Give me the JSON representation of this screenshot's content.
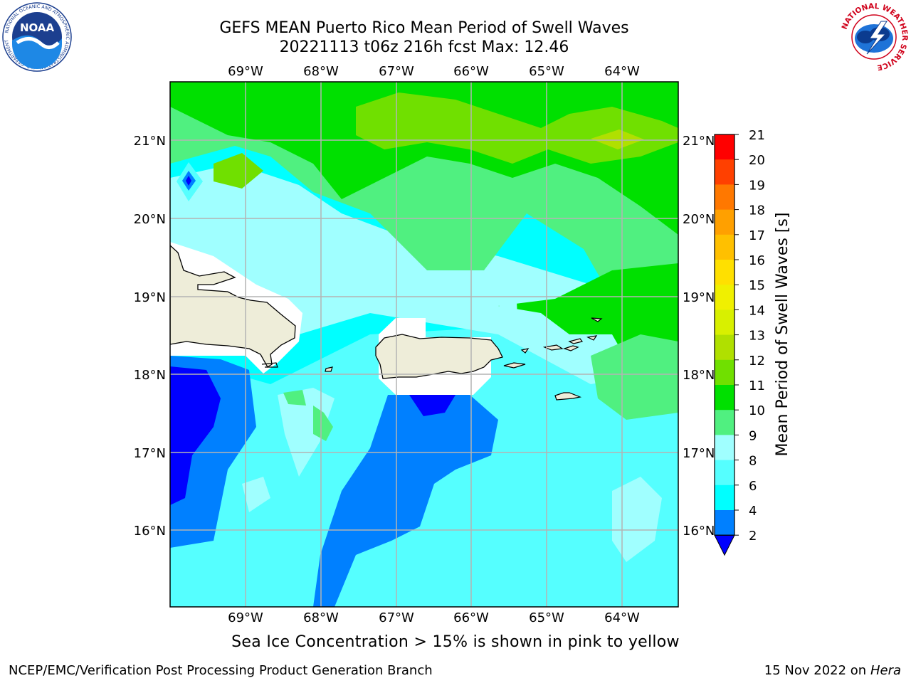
{
  "header": {
    "title_line1": "GEFS MEAN Puerto Rico Mean Period of Swell Waves",
    "title_line2": "20221113 t06z 216h fcst   Max: 12.46"
  },
  "logos": {
    "noaa": {
      "text": "NOAA",
      "ring_text": "NATIONAL OCEANIC AND ATMOSPHERIC ADMINISTRATION · U.S. DEPARTMENT OF COMMERCE"
    },
    "nws": {
      "ring_text": "NATIONAL WEATHER SERVICE"
    }
  },
  "map": {
    "lon_labels": [
      "69°W",
      "68°W",
      "67°W",
      "66°W",
      "65°W",
      "64°W"
    ],
    "lat_labels": [
      "21°N",
      "20°N",
      "19°N",
      "18°N",
      "17°N",
      "16°N"
    ],
    "colors": {
      "grid": "#b4b4b4",
      "land": "#eeedd9",
      "coast": "#000000"
    }
  },
  "colorbar": {
    "label": "Mean Period of Swell Waves [s]",
    "ticks": [
      "2",
      "4",
      "6",
      "8",
      "9",
      "10",
      "11",
      "12",
      "13",
      "14",
      "15",
      "16",
      "17",
      "18",
      "19",
      "20",
      "21"
    ],
    "colors": [
      "#0000ff",
      "#0080ff",
      "#00ffff",
      "#55ffff",
      "#a0ffff",
      "#50f080",
      "#00e000",
      "#70e000",
      "#b0e000",
      "#d8f000",
      "#f0f000",
      "#ffe000",
      "#ffc000",
      "#ffa000",
      "#ff7800",
      "#ff4000",
      "#ff0000"
    ]
  },
  "caption": "Sea Ice Concentration > 15% is shown in pink to yellow",
  "footer": {
    "left": "NCEP/EMC/Verification Post Processing Product Generation Branch",
    "right_prefix": "15 Nov 2022 on",
    "right_host": "Hera"
  }
}
